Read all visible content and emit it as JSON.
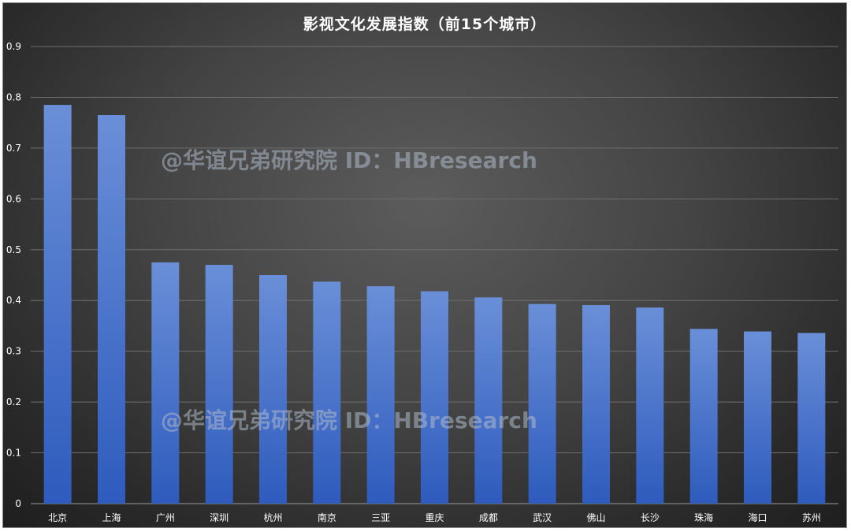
{
  "chart_data": {
    "type": "bar",
    "title": "影视文化发展指数（前15个城市）",
    "categories": [
      "北京",
      "上海",
      "广州",
      "深圳",
      "杭州",
      "南京",
      "三亚",
      "重庆",
      "成都",
      "武汉",
      "佛山",
      "长沙",
      "珠海",
      "海口",
      "苏州"
    ],
    "values": [
      0.785,
      0.765,
      0.475,
      0.47,
      0.45,
      0.437,
      0.428,
      0.418,
      0.406,
      0.393,
      0.391,
      0.386,
      0.344,
      0.339,
      0.336
    ],
    "ylim": [
      0,
      0.9
    ],
    "yticks": [
      "0",
      "0.1",
      "0.2",
      "0.3",
      "0.4",
      "0.5",
      "0.6",
      "0.7",
      "0.8",
      "0.9"
    ],
    "grid": true,
    "legend": "none"
  },
  "colors": {
    "bar_top": "#6a8fd8",
    "bar_bottom": "#2e5bbd",
    "gridline": "#6e6e6e",
    "axis_text": "#ffffff"
  },
  "watermark_text": "@华谊兄弟研究院 ID：HBresearch"
}
